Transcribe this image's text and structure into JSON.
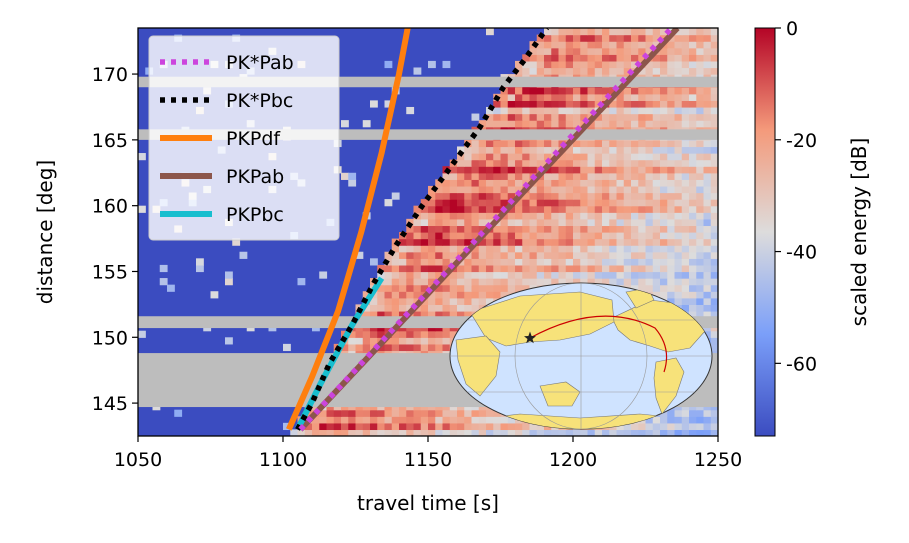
{
  "chart_data": {
    "type": "heatmap",
    "title": "",
    "xlabel": "travel time [s]",
    "ylabel": "distance [deg]",
    "xlim": [
      1050,
      1250
    ],
    "ylim": [
      142.5,
      173.5
    ],
    "x_ticks": [
      "1050",
      "1100",
      "1150",
      "1200",
      "1250"
    ],
    "y_ticks": [
      "145",
      "150",
      "155",
      "160",
      "165",
      "170"
    ],
    "colorbar": {
      "label": "scaled energy [dB]",
      "range": [
        -73,
        0
      ],
      "ticks": [
        "0",
        "-20",
        "-40",
        "-60"
      ],
      "colormap": "coolwarm"
    },
    "missing_distance_bands_deg": [
      [
        144.7,
        148.8
      ],
      [
        150.7,
        151.6
      ],
      [
        165.0,
        165.8
      ],
      [
        169.0,
        169.8
      ]
    ],
    "legend": {
      "position": "top-left"
    },
    "series": [
      {
        "name": "PK*Pab",
        "style": "dotted",
        "color": "#cc44dd",
        "points": [
          [
            1106,
            143
          ],
          [
            1234,
            173.5
          ]
        ]
      },
      {
        "name": "PK*Pbc",
        "style": "dotted",
        "color": "#000000",
        "points": [
          [
            1105,
            143
          ],
          [
            1110,
            145
          ],
          [
            1116,
            148
          ],
          [
            1124,
            151
          ],
          [
            1131,
            154
          ],
          [
            1139,
            157
          ],
          [
            1148,
            160
          ],
          [
            1158,
            163
          ],
          [
            1168,
            166
          ],
          [
            1176,
            169
          ],
          [
            1183,
            171
          ],
          [
            1191,
            173.5
          ]
        ]
      },
      {
        "name": "PKPdf",
        "style": "solid",
        "color": "#ff7f0e",
        "points": [
          [
            1102,
            143
          ],
          [
            1110,
            147
          ],
          [
            1119,
            152
          ],
          [
            1127,
            158
          ],
          [
            1134,
            164
          ],
          [
            1140,
            170
          ],
          [
            1143,
            173.5
          ]
        ]
      },
      {
        "name": "PKPab",
        "style": "solid",
        "color": "#8c564b",
        "points": [
          [
            1106,
            143
          ],
          [
            1236,
            173.5
          ]
        ]
      },
      {
        "name": "PKPbc",
        "style": "solid",
        "color": "#17becf",
        "points": [
          [
            1105,
            143
          ],
          [
            1113,
            146.5
          ],
          [
            1124,
            151
          ],
          [
            1134,
            154.5
          ]
        ]
      }
    ],
    "inset": {
      "type": "world-map",
      "marks": [
        "event-star",
        "ray-path"
      ]
    }
  }
}
